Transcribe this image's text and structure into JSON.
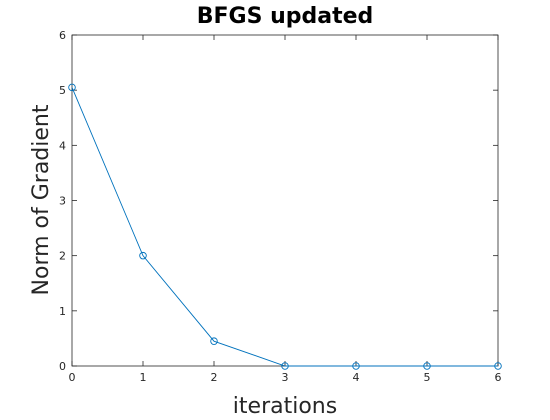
{
  "chart_data": {
    "type": "line",
    "title": "BFGS updated",
    "xlabel": "iterations",
    "ylabel": "Norm of Gradient",
    "xlim": [
      0,
      6
    ],
    "ylim": [
      0,
      6
    ],
    "xticks": [
      "0",
      "1",
      "2",
      "3",
      "4",
      "5",
      "6"
    ],
    "yticks": [
      "0",
      "1",
      "2",
      "3",
      "4",
      "5",
      "6"
    ],
    "grid": false,
    "legend": "none",
    "marker": "circle",
    "series": [
      {
        "x": [
          0,
          1,
          2,
          3,
          4,
          5,
          6
        ],
        "y": [
          5.05,
          2.0,
          0.45,
          0.0,
          0.0,
          0.0,
          0.0
        ],
        "color": "#0072bd"
      }
    ]
  }
}
